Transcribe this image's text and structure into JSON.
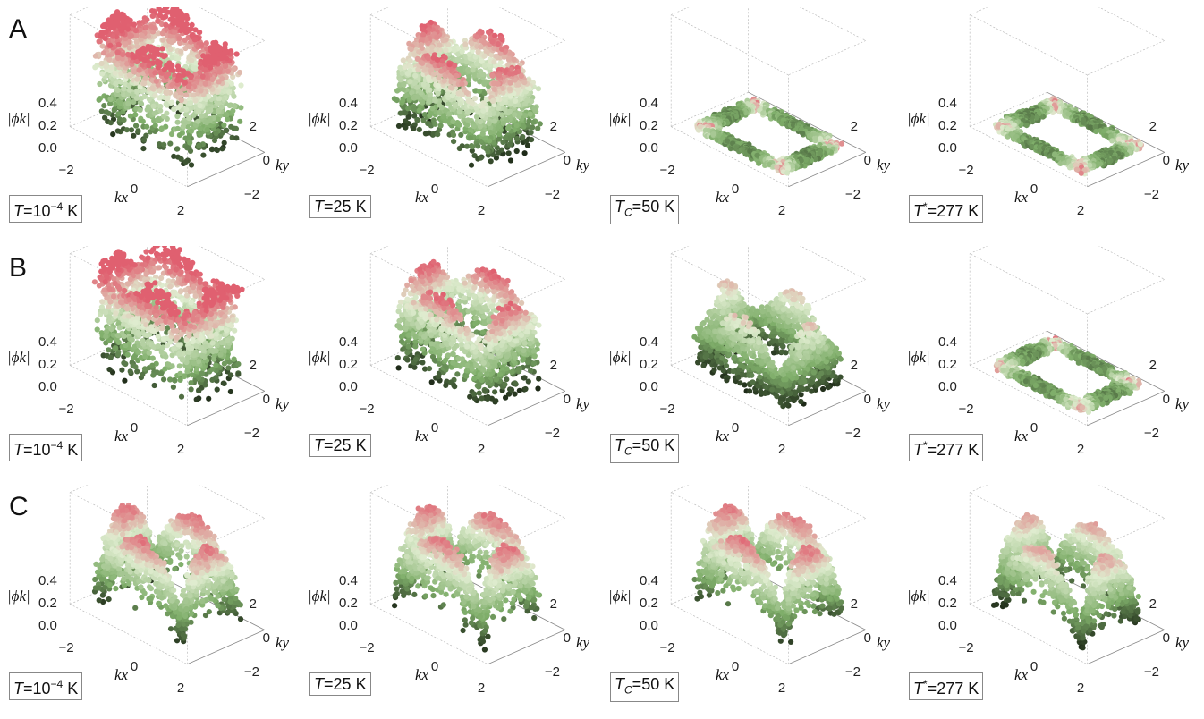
{
  "rows": [
    {
      "letter": "A",
      "panels": [
        {
          "sym": "T",
          "sub": "",
          "star": "",
          "val": "10",
          "exp": "−4",
          "unit": "K",
          "shape": "wall"
        },
        {
          "sym": "T",
          "sub": "",
          "star": "",
          "val": "25",
          "exp": "",
          "unit": "K",
          "shape": "wallDip"
        },
        {
          "sym": "T",
          "sub": "C",
          "star": "",
          "val": "50",
          "exp": "",
          "unit": "K",
          "shape": "flat"
        },
        {
          "sym": "T",
          "sub": "",
          "star": "*",
          "val": "277",
          "exp": "",
          "unit": "K",
          "shape": "flat"
        }
      ]
    },
    {
      "letter": "B",
      "panels": [
        {
          "sym": "T",
          "sub": "",
          "star": "",
          "val": "10",
          "exp": "−4",
          "unit": "K",
          "shape": "wall"
        },
        {
          "sym": "T",
          "sub": "",
          "star": "",
          "val": "25",
          "exp": "",
          "unit": "K",
          "shape": "wallDip"
        },
        {
          "sym": "T",
          "sub": "C",
          "star": "",
          "val": "50",
          "exp": "",
          "unit": "K",
          "shape": "low"
        },
        {
          "sym": "T",
          "sub": "",
          "star": "*",
          "val": "277",
          "exp": "",
          "unit": "K",
          "shape": "flat"
        }
      ]
    },
    {
      "letter": "C",
      "panels": [
        {
          "sym": "T",
          "sub": "",
          "star": "",
          "val": "10",
          "exp": "−4",
          "unit": "K",
          "shape": "dwave"
        },
        {
          "sym": "T",
          "sub": "",
          "star": "",
          "val": "25",
          "exp": "",
          "unit": "K",
          "shape": "dwave"
        },
        {
          "sym": "T",
          "sub": "C",
          "star": "",
          "val": "50",
          "exp": "",
          "unit": "K",
          "shape": "dwave"
        },
        {
          "sym": "T",
          "sub": "",
          "star": "*",
          "val": "277",
          "exp": "",
          "unit": "K",
          "shape": "dwaveLow"
        }
      ]
    }
  ],
  "axes": {
    "zlabel": "|ϕk|",
    "xlabel": "kx",
    "ylabel": "ky",
    "zticks": [
      "0.4",
      "0.2",
      "0.0"
    ],
    "xticks": [
      "−2",
      "0",
      "2"
    ],
    "yticks": [
      "2",
      "0",
      "−2"
    ]
  },
  "colors": {
    "low": "#1e2a18",
    "mid": "#7fae6a",
    "pale": "#dfeccf",
    "high": "#e06070"
  }
}
